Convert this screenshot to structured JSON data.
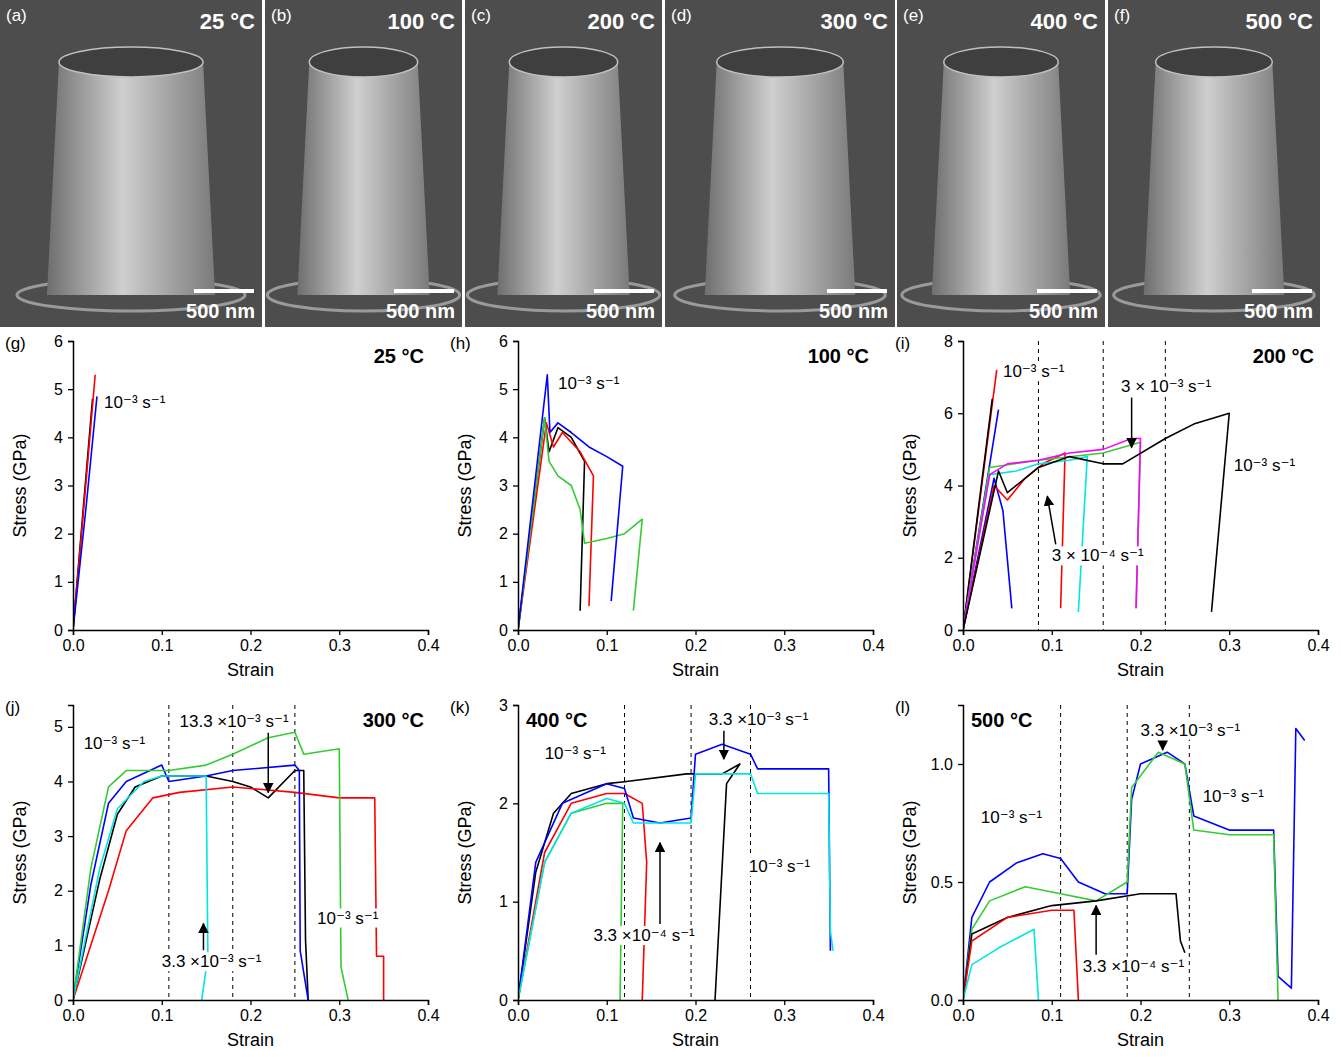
{
  "images": [
    {
      "panel": "(a)",
      "label": "25 °C",
      "scale_bar": "500 nm"
    },
    {
      "panel": "(b)",
      "label": "100 °C",
      "scale_bar": "500 nm"
    },
    {
      "panel": "(c)",
      "label": "200 °C",
      "scale_bar": "500 nm"
    },
    {
      "panel": "(d)",
      "label": "300 °C",
      "scale_bar": "500 nm"
    },
    {
      "panel": "(e)",
      "label": "400 °C",
      "scale_bar": "500 nm"
    },
    {
      "panel": "(f)",
      "label": "500 °C",
      "scale_bar": "500 nm"
    }
  ],
  "chart_data": [
    {
      "type": "line",
      "panel": "(g)",
      "title": "25 °C",
      "x_label": "Strain",
      "y_label": "Stress (GPa)",
      "xlim": [
        0,
        0.4
      ],
      "xticks": [
        {
          "value": 0,
          "label": "0.0"
        },
        0.1,
        0.2,
        0.3,
        0.4
      ],
      "ylim": [
        0,
        6
      ],
      "yticks": [
        0,
        1,
        2,
        3,
        4,
        5,
        6
      ],
      "reference_lines_x": [],
      "series": [
        {
          "color": "#000000",
          "x": [
            0,
            0.022
          ],
          "values": [
            0,
            4.8
          ]
        },
        {
          "color": "#ff0000",
          "x": [
            0,
            0.012,
            0.025
          ],
          "values": [
            0,
            2.5,
            5.3
          ]
        },
        {
          "color": "#0000ff",
          "x": [
            0,
            0.015,
            0.027
          ],
          "values": [
            0,
            2.6,
            4.85
          ]
        }
      ],
      "annotations": [
        {
          "text": "10⁻³ s⁻¹",
          "x": 0.035,
          "y": 4.6
        }
      ]
    },
    {
      "type": "line",
      "panel": "(h)",
      "title": "100 °C",
      "x_label": "Strain",
      "y_label": "Stress (GPa)",
      "xlim": [
        0,
        0.4
      ],
      "xticks": [
        {
          "value": 0,
          "label": "0.0"
        },
        0.1,
        0.2,
        0.3,
        0.4
      ],
      "ylim": [
        0,
        6
      ],
      "yticks": [
        0,
        1,
        2,
        3,
        4,
        5,
        6
      ],
      "reference_lines_x": [],
      "series": [
        {
          "color": "#000000",
          "x": [
            0,
            0.03,
            0.035,
            0.045,
            0.06,
            0.075,
            0.07
          ],
          "values": [
            0,
            4.4,
            3.7,
            4.2,
            4.0,
            3.5,
            0.4
          ]
        },
        {
          "color": "#ff0000",
          "x": [
            0,
            0.032,
            0.04,
            0.05,
            0.07,
            0.085,
            0.08
          ],
          "values": [
            0,
            4.3,
            3.8,
            4.1,
            3.7,
            3.2,
            0.5
          ]
        },
        {
          "color": "#33cc33",
          "x": [
            0,
            0.03,
            0.035,
            0.045,
            0.06,
            0.07,
            0.075,
            0.1,
            0.12,
            0.14,
            0.13
          ],
          "values": [
            0,
            4.4,
            3.5,
            3.2,
            3.0,
            2.5,
            1.8,
            1.9,
            2.0,
            2.3,
            0.4
          ]
        },
        {
          "color": "#0000ff",
          "x": [
            0,
            0.033,
            0.036,
            0.045,
            0.06,
            0.08,
            0.1,
            0.118,
            0.105
          ],
          "values": [
            0,
            5.3,
            4.1,
            4.3,
            4.1,
            3.8,
            3.6,
            3.4,
            0.6
          ]
        }
      ],
      "annotations": [
        {
          "text": "10⁻³ s⁻¹",
          "x": 0.045,
          "y": 5.0
        }
      ]
    },
    {
      "type": "line",
      "panel": "(i)",
      "title": "200 °C",
      "x_label": "Strain",
      "y_label": "Stress (GPa)",
      "xlim": [
        0,
        0.4
      ],
      "xticks": [
        {
          "value": 0,
          "label": "0.0"
        },
        0.1,
        0.2,
        0.3,
        0.4
      ],
      "ylim": [
        0,
        8
      ],
      "yticks": [
        0,
        2,
        4,
        6,
        8
      ],
      "reference_lines_x": [
        0.085,
        0.158,
        0.228
      ],
      "series": [
        {
          "color": "#ff0000",
          "x": [
            0,
            0.038
          ],
          "values": [
            0,
            7.2
          ]
        },
        {
          "color": "#000000",
          "x": [
            0,
            0.033
          ],
          "values": [
            0,
            6.4
          ]
        },
        {
          "color": "#0000ff",
          "x": [
            0,
            0.04
          ],
          "values": [
            0,
            6.1
          ]
        },
        {
          "color": "#0000ff",
          "x": [
            0,
            0.035,
            0.045,
            0.055
          ],
          "values": [
            0,
            4.2,
            3.3,
            0.6
          ]
        },
        {
          "color": "#ff0000",
          "x": [
            0,
            0.035,
            0.05,
            0.07,
            0.09,
            0.115,
            0.11
          ],
          "values": [
            0,
            4.0,
            3.6,
            4.2,
            4.6,
            4.9,
            0.6
          ]
        },
        {
          "color": "#00e5e5",
          "x": [
            0,
            0.03,
            0.06,
            0.085,
            0.12,
            0.14,
            0.13
          ],
          "values": [
            0,
            4.3,
            4.4,
            4.6,
            4.7,
            4.8,
            0.5
          ]
        },
        {
          "color": "#33cc33",
          "x": [
            0,
            0.03,
            0.085,
            0.158,
            0.2,
            0.195
          ],
          "values": [
            0,
            4.5,
            4.7,
            4.9,
            5.2,
            0.6
          ]
        },
        {
          "color": "#ff00ff",
          "x": [
            0,
            0.03,
            0.05,
            0.085,
            0.12,
            0.158,
            0.19,
            0.2,
            0.195
          ],
          "values": [
            0,
            4.3,
            4.6,
            4.7,
            4.9,
            5.0,
            5.3,
            5.3,
            0.6
          ]
        },
        {
          "color": "#000000",
          "x": [
            0,
            0.04,
            0.05,
            0.085,
            0.12,
            0.158,
            0.18,
            0.228,
            0.26,
            0.3,
            0.28
          ],
          "values": [
            0,
            4.4,
            3.8,
            4.5,
            4.8,
            4.6,
            4.6,
            5.3,
            5.7,
            6.0,
            0.5
          ]
        }
      ],
      "annotations": [
        {
          "text": "10⁻³ s⁻¹",
          "x": 0.045,
          "y": 7.0
        },
        {
          "text": "3 × 10⁻³ s⁻¹",
          "x": 0.178,
          "y": 6.6,
          "arrow_to": [
            0.19,
            5.05
          ]
        },
        {
          "text": "10⁻³ s⁻¹",
          "x": 0.305,
          "y": 4.4
        },
        {
          "text": "3 × 10⁻⁴ s⁻¹",
          "x": 0.1,
          "y": 1.9,
          "arrow_to": [
            0.095,
            3.7
          ]
        }
      ]
    },
    {
      "type": "line",
      "panel": "(j)",
      "title": "300 °C",
      "x_label": "Strain",
      "y_label": "Stress (GPa)",
      "xlim": [
        0,
        0.4
      ],
      "xticks": [
        {
          "value": 0,
          "label": "0.0"
        },
        0.1,
        0.2,
        0.3,
        0.4
      ],
      "ylim": [
        0,
        5.4
      ],
      "yticks": [
        0,
        1,
        2,
        3,
        4,
        5
      ],
      "reference_lines_x": [
        0.108,
        0.18,
        0.25
      ],
      "series": [
        {
          "color": "#000000",
          "x": [
            0,
            0.03,
            0.05,
            0.07,
            0.1,
            0.15,
            0.18,
            0.2,
            0.22,
            0.25,
            0.26,
            0.262,
            0.265
          ],
          "values": [
            0,
            2.2,
            3.4,
            3.9,
            4.1,
            4.1,
            4.0,
            3.9,
            3.7,
            4.2,
            4.2,
            1.1,
            0
          ]
        },
        {
          "color": "#ff0000",
          "x": [
            0,
            0.04,
            0.06,
            0.09,
            0.12,
            0.18,
            0.25,
            0.3,
            0.34,
            0.342,
            0.35,
            0.35
          ],
          "values": [
            0,
            2.0,
            3.1,
            3.7,
            3.8,
            3.9,
            3.8,
            3.7,
            3.7,
            0.8,
            0.8,
            0
          ]
        },
        {
          "color": "#0000ff",
          "x": [
            0,
            0.02,
            0.04,
            0.06,
            0.1,
            0.108,
            0.15,
            0.18,
            0.25,
            0.255,
            0.256,
            0.265
          ],
          "values": [
            0,
            2.1,
            3.6,
            4.0,
            4.3,
            4.0,
            4.1,
            4.2,
            4.3,
            4.2,
            0.9,
            0
          ]
        },
        {
          "color": "#33cc33",
          "x": [
            0,
            0.02,
            0.04,
            0.06,
            0.1,
            0.108,
            0.15,
            0.18,
            0.22,
            0.25,
            0.26,
            0.3,
            0.302,
            0.31
          ],
          "values": [
            0,
            2.4,
            3.9,
            4.2,
            4.2,
            4.2,
            4.3,
            4.5,
            4.8,
            4.9,
            4.5,
            4.6,
            0.6,
            0
          ]
        },
        {
          "color": "#00e5e5",
          "x": [
            0,
            0.03,
            0.05,
            0.08,
            0.1,
            0.15,
            0.152,
            0.145
          ],
          "values": [
            0,
            2.4,
            3.5,
            4.0,
            4.1,
            4.1,
            0.8,
            0
          ]
        }
      ],
      "annotations": [
        {
          "text": "10⁻³ s⁻¹",
          "x": 0.012,
          "y": 4.6
        },
        {
          "text": "13.3 ×10⁻³ s⁻¹",
          "x": 0.12,
          "y": 5.0,
          "arrow_to": [
            0.22,
            3.8
          ]
        },
        {
          "text": "3.3 ×10⁻³ s⁻¹",
          "x": 0.1,
          "y": 0.6,
          "arrow_to": [
            0.147,
            1.4
          ]
        },
        {
          "text": "10⁻³ s⁻¹",
          "x": 0.275,
          "y": 1.4
        }
      ]
    },
    {
      "type": "line",
      "panel": "(k)",
      "title": "400 °C",
      "x_label": "Strain",
      "y_label": "Stress (GPa)",
      "xlim": [
        0,
        0.4
      ],
      "xticks": [
        {
          "value": 0,
          "label": "0.0"
        },
        0.1,
        0.2,
        0.3,
        0.4
      ],
      "ylim": [
        0,
        3
      ],
      "yticks": [
        0,
        1,
        2,
        3
      ],
      "reference_lines_x": [
        0.12,
        0.195,
        0.262
      ],
      "series": [
        {
          "color": "#000000",
          "x": [
            0,
            0.02,
            0.04,
            0.06,
            0.1,
            0.12,
            0.19,
            0.2,
            0.23,
            0.25,
            0.235,
            0.222
          ],
          "values": [
            0,
            1.3,
            1.9,
            2.1,
            2.2,
            2.22,
            2.3,
            2.3,
            2.3,
            2.4,
            2.2,
            0
          ]
        },
        {
          "color": "#ff0000",
          "x": [
            0,
            0.03,
            0.06,
            0.1,
            0.12,
            0.14,
            0.145,
            0.14
          ],
          "values": [
            0,
            1.5,
            2.0,
            2.1,
            2.1,
            2.0,
            1.4,
            0
          ]
        },
        {
          "color": "#33cc33",
          "x": [
            0,
            0.03,
            0.06,
            0.1,
            0.118,
            0.115
          ],
          "values": [
            0,
            1.4,
            1.9,
            2.0,
            2.0,
            0
          ]
        },
        {
          "color": "#0000ff",
          "x": [
            0,
            0.02,
            0.05,
            0.1,
            0.12,
            0.13,
            0.16,
            0.195,
            0.2,
            0.23,
            0.262,
            0.27,
            0.3,
            0.35,
            0.352
          ],
          "values": [
            0,
            1.4,
            2.0,
            2.2,
            2.15,
            1.85,
            1.8,
            1.85,
            2.5,
            2.6,
            2.5,
            2.35,
            2.35,
            2.35,
            0.5
          ]
        },
        {
          "color": "#00e5e5",
          "x": [
            0,
            0.03,
            0.06,
            0.1,
            0.12,
            0.13,
            0.195,
            0.2,
            0.262,
            0.27,
            0.35,
            0.352,
            0.355
          ],
          "values": [
            0,
            1.4,
            1.9,
            2.05,
            2.0,
            1.8,
            1.8,
            2.3,
            2.3,
            2.1,
            2.1,
            0.7,
            0.5
          ]
        }
      ],
      "annotations": [
        {
          "text": "10⁻³ s⁻¹",
          "x": 0.03,
          "y": 2.45
        },
        {
          "text": "3.3 ×10⁻³ s⁻¹",
          "x": 0.215,
          "y": 2.8,
          "arrow_to": [
            0.232,
            2.45
          ]
        },
        {
          "text": "3.3 ×10⁻⁴ s⁻¹",
          "x": 0.085,
          "y": 0.6,
          "arrow_to": [
            0.16,
            1.6
          ]
        },
        {
          "text": "10⁻³ s⁻¹",
          "x": 0.26,
          "y": 1.3
        }
      ]
    },
    {
      "type": "line",
      "panel": "(l)",
      "title": "500 °C",
      "x_label": "Strain",
      "y_label": "Stress (GPa)",
      "xlim": [
        0,
        0.4
      ],
      "xticks": [
        {
          "value": 0,
          "label": "0.0"
        },
        0.1,
        0.2,
        0.3,
        0.4
      ],
      "ylim": [
        0,
        1.25
      ],
      "yticks": [
        {
          "value": 0,
          "label": "0.0"
        },
        0.5,
        {
          "value": 1,
          "label": "1.0"
        }
      ],
      "reference_lines_x": [
        0.11,
        0.185,
        0.255
      ],
      "series": [
        {
          "color": "#0000ff",
          "x": [
            0,
            0.01,
            0.03,
            0.06,
            0.09,
            0.11,
            0.13,
            0.16,
            0.185,
            0.19,
            0.2,
            0.23,
            0.25,
            0.26,
            0.3,
            0.35,
            0.355,
            0.37,
            0.375,
            0.385
          ],
          "values": [
            0,
            0.35,
            0.5,
            0.58,
            0.62,
            0.6,
            0.5,
            0.45,
            0.45,
            0.85,
            1.0,
            1.05,
            1.0,
            0.78,
            0.72,
            0.72,
            0.1,
            0.05,
            1.15,
            1.1
          ]
        },
        {
          "color": "#33cc33",
          "x": [
            0,
            0.01,
            0.03,
            0.07,
            0.11,
            0.15,
            0.185,
            0.19,
            0.22,
            0.25,
            0.26,
            0.3,
            0.35,
            0.355
          ],
          "values": [
            0,
            0.3,
            0.42,
            0.48,
            0.45,
            0.42,
            0.5,
            0.9,
            1.05,
            1.0,
            0.72,
            0.7,
            0.7,
            0
          ]
        },
        {
          "color": "#000000",
          "x": [
            0,
            0.01,
            0.05,
            0.1,
            0.15,
            0.2,
            0.24,
            0.245,
            0.25
          ],
          "values": [
            0,
            0.28,
            0.35,
            0.4,
            0.42,
            0.45,
            0.45,
            0.25,
            0.2
          ]
        },
        {
          "color": "#ff0000",
          "x": [
            0,
            0.01,
            0.05,
            0.1,
            0.125,
            0.13
          ],
          "values": [
            0,
            0.25,
            0.35,
            0.38,
            0.38,
            0
          ]
        },
        {
          "color": "#00e5e5",
          "x": [
            0,
            0.01,
            0.04,
            0.07,
            0.08,
            0.085
          ],
          "values": [
            0,
            0.15,
            0.22,
            0.28,
            0.3,
            0
          ]
        }
      ],
      "annotations": [
        {
          "text": "10⁻³ s⁻¹",
          "x": 0.02,
          "y": 0.75
        },
        {
          "text": "3.3 ×10⁻³ s⁻¹",
          "x": 0.2,
          "y": 1.12,
          "arrow_to": [
            0.225,
            1.06
          ]
        },
        {
          "text": "3.3 ×10⁻⁴ s⁻¹",
          "x": 0.135,
          "y": 0.12,
          "arrow_to": [
            0.15,
            0.4
          ]
        },
        {
          "text": "10⁻³ s⁻¹",
          "x": 0.27,
          "y": 0.84
        }
      ]
    }
  ]
}
